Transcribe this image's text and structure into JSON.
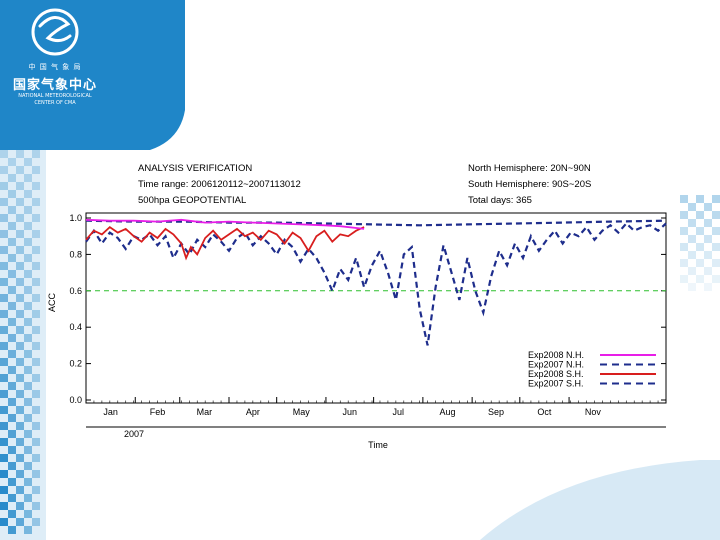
{
  "logo": {
    "top_text": "中 国 气 象 局",
    "cn_text": "国家气象中心",
    "en_line1": "NATIONAL METEOROLOGICAL",
    "en_line2": "CENTER OF CMA"
  },
  "colors": {
    "slide_blue": "#1f86c8",
    "checker_blue": "#1f86c8",
    "nh_2008": "#e81ee8",
    "nh_2007": "#1e2d8c",
    "sh_2008": "#d81e1e",
    "sh_2007": "#1e2d8c",
    "ref_line": "#2fbf2f"
  },
  "chart_data": {
    "type": "line",
    "title": "ANALYSIS VERIFICATION",
    "time_range": "Time range: 2006120112~2007113012",
    "field": "500hpa   GEOPOTENTIAL",
    "nh_region": "North Hemisphere: 20N~90N",
    "sh_region": "South Hemisphere: 90S~20S",
    "total_days": "Total days: 365",
    "xlabel": "Time",
    "ylabel": "ACC",
    "year_label": "2007",
    "months": [
      "Jan",
      "Feb",
      "Mar",
      "Apr",
      "May",
      "Jun",
      "Jul",
      "Aug",
      "Sep",
      "Oct",
      "Nov"
    ],
    "yticks": [
      "0.0",
      "0.2",
      "0.4",
      "0.6",
      "0.8",
      "1.0"
    ],
    "ylim": [
      0,
      1.0
    ],
    "xlim": [
      0,
      365
    ],
    "reference_line": 0.6,
    "series": [
      {
        "name": "Exp2008 N.H.",
        "style": "solid",
        "color": "#e81ee8",
        "x": [
          0,
          15,
          30,
          45,
          60,
          75,
          90,
          105,
          120,
          135,
          150,
          160,
          175
        ],
        "y": [
          0.99,
          0.985,
          0.985,
          0.98,
          0.99,
          0.975,
          0.98,
          0.975,
          0.97,
          0.965,
          0.96,
          0.955,
          0.94
        ]
      },
      {
        "name": "Exp2007 N.H.",
        "style": "dashed",
        "color": "#1e2d8c",
        "x": [
          0,
          30,
          60,
          90,
          120,
          150,
          180,
          210,
          240,
          270,
          300,
          330,
          365
        ],
        "y": [
          0.985,
          0.98,
          0.98,
          0.975,
          0.975,
          0.97,
          0.965,
          0.96,
          0.965,
          0.97,
          0.975,
          0.98,
          0.985
        ]
      },
      {
        "name": "Exp2008 S.H.",
        "style": "solid",
        "color": "#d81e1e",
        "x": [
          0,
          5,
          10,
          15,
          20,
          25,
          30,
          35,
          40,
          45,
          50,
          55,
          60,
          63,
          66,
          70,
          75,
          80,
          85,
          90,
          95,
          100,
          105,
          110,
          115,
          120,
          125,
          130,
          135,
          140,
          145,
          150,
          155,
          160,
          165,
          170,
          175
        ],
        "y": [
          0.88,
          0.93,
          0.91,
          0.95,
          0.92,
          0.94,
          0.9,
          0.87,
          0.92,
          0.89,
          0.94,
          0.91,
          0.86,
          0.78,
          0.84,
          0.8,
          0.89,
          0.93,
          0.88,
          0.91,
          0.94,
          0.9,
          0.92,
          0.88,
          0.93,
          0.91,
          0.86,
          0.92,
          0.89,
          0.82,
          0.9,
          0.93,
          0.87,
          0.91,
          0.9,
          0.93,
          0.95
        ]
      },
      {
        "name": "Exp2007 S.H.",
        "style": "dashed",
        "color": "#1e2d8c",
        "x": [
          0,
          5,
          10,
          15,
          20,
          25,
          30,
          35,
          40,
          45,
          50,
          55,
          60,
          65,
          70,
          75,
          80,
          85,
          90,
          95,
          100,
          105,
          110,
          115,
          120,
          125,
          130,
          135,
          140,
          145,
          150,
          155,
          160,
          165,
          170,
          175,
          180,
          185,
          190,
          195,
          200,
          205,
          210,
          215,
          220,
          225,
          230,
          235,
          240,
          245,
          250,
          255,
          260,
          265,
          270,
          275,
          280,
          285,
          290,
          295,
          300,
          305,
          310,
          315,
          320,
          325,
          330,
          335,
          340,
          345,
          350,
          355,
          360,
          365
        ],
        "y": [
          0.87,
          0.93,
          0.86,
          0.92,
          0.89,
          0.83,
          0.9,
          0.88,
          0.91,
          0.85,
          0.9,
          0.78,
          0.86,
          0.8,
          0.88,
          0.84,
          0.91,
          0.87,
          0.82,
          0.89,
          0.92,
          0.85,
          0.9,
          0.86,
          0.8,
          0.88,
          0.84,
          0.76,
          0.83,
          0.78,
          0.7,
          0.6,
          0.72,
          0.66,
          0.78,
          0.62,
          0.74,
          0.82,
          0.7,
          0.55,
          0.8,
          0.84,
          0.5,
          0.3,
          0.62,
          0.85,
          0.7,
          0.55,
          0.78,
          0.6,
          0.48,
          0.68,
          0.82,
          0.74,
          0.86,
          0.78,
          0.9,
          0.82,
          0.88,
          0.93,
          0.86,
          0.92,
          0.9,
          0.95,
          0.88,
          0.93,
          0.96,
          0.92,
          0.97,
          0.93,
          0.95,
          0.96,
          0.93,
          0.97
        ]
      }
    ],
    "legend": [
      "Exp2008 N.H.",
      "Exp2007 N.H.",
      "Exp2008 S.H.",
      "Exp2007 S.H."
    ],
    "legend_position": "bottom-right"
  }
}
